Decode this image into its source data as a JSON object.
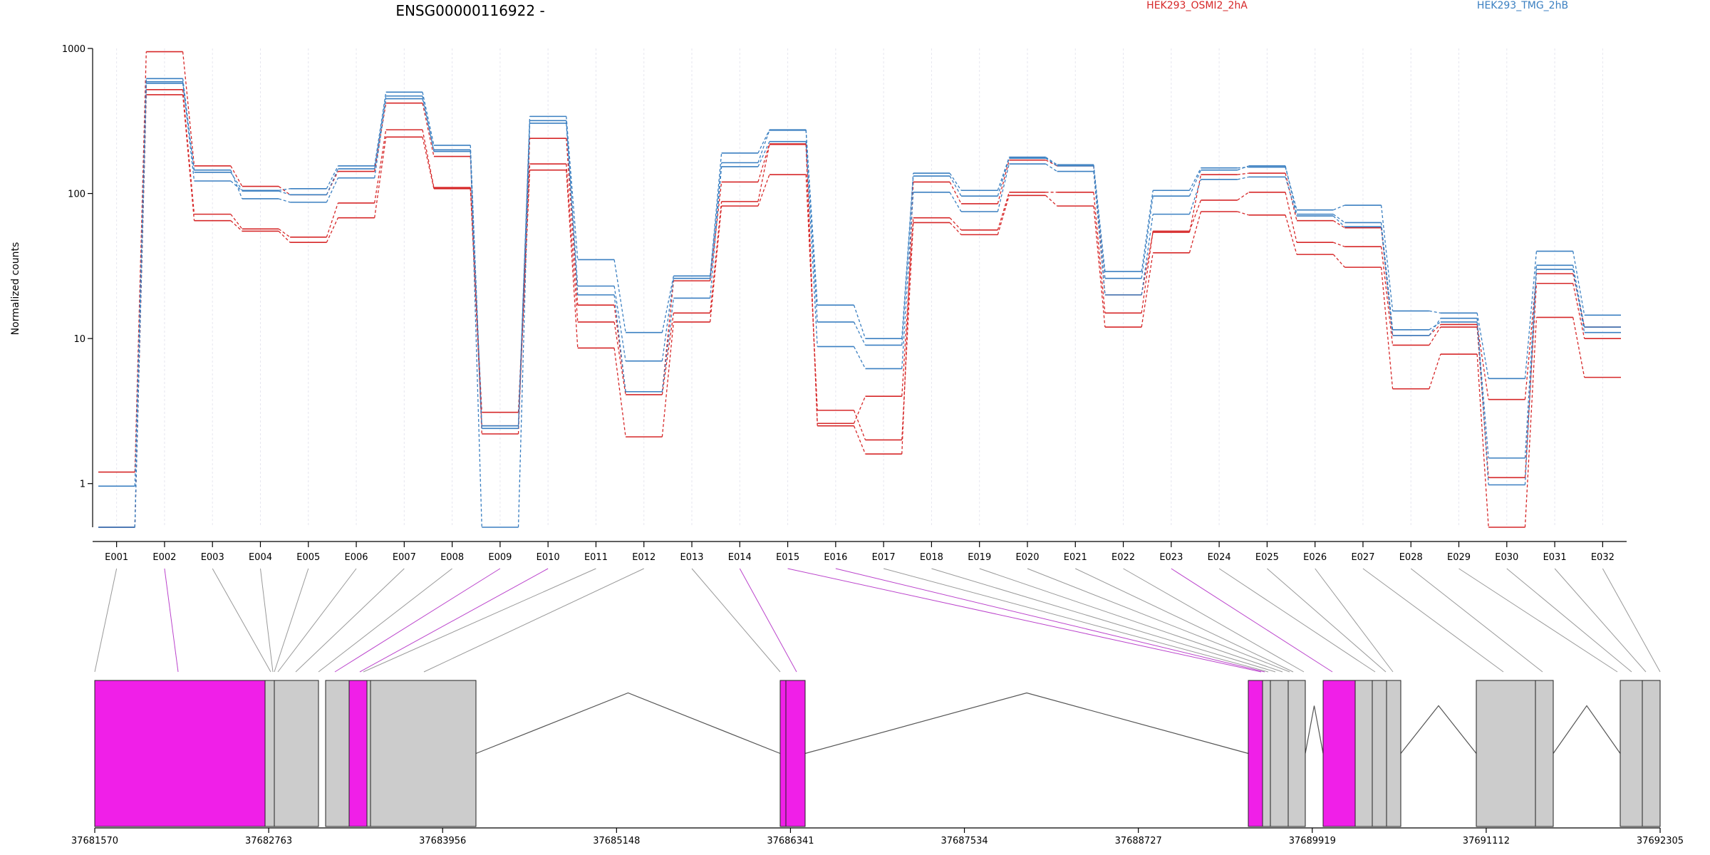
{
  "title": "ENSG00000116922 -",
  "legend": [
    {
      "label": "HEK293_OSMI2_2hA",
      "color": "#d62728"
    },
    {
      "label": "HEK293_TMG_2hB",
      "color": "#3a7fc1"
    }
  ],
  "colors": {
    "red": "#d62728",
    "blue": "#3a7fc1",
    "highlight": "#f01fe8",
    "exon_gray": "#cccccc",
    "connector_gray": "#999999",
    "connector_magenta": "#bb44cc",
    "grid": "#e6e6ef"
  },
  "chart_data": {
    "type": "line",
    "ylabel": "Normalized counts",
    "yscale": "log",
    "ylim": [
      0.5,
      1000
    ],
    "yticks": [
      "1000",
      "100",
      "10",
      "1"
    ],
    "categories": [
      "E001",
      "E002",
      "E003",
      "E004",
      "E005",
      "E006",
      "E007",
      "E008",
      "E009",
      "E010",
      "E011",
      "E012",
      "E013",
      "E014",
      "E015",
      "E016",
      "E017",
      "E018",
      "E019",
      "E020",
      "E021",
      "E022",
      "E023",
      "E024",
      "E025",
      "E026",
      "E027",
      "E028",
      "E029",
      "E030",
      "E031",
      "E032"
    ],
    "series": [
      {
        "group": "red",
        "values": [
          1.2,
          950,
          155,
          112,
          98,
          142,
          420,
          180,
          2.2,
          240,
          17,
          4.3,
          25,
          120,
          220,
          2.5,
          1.6,
          120,
          85,
          170,
          155,
          20,
          54,
          135,
          138,
          65,
          58,
          10.5,
          12.5,
          3.8,
          28,
          12
        ]
      },
      {
        "group": "red",
        "values": [
          0.5,
          520,
          72,
          57,
          50,
          86,
          275,
          110,
          3.1,
          160,
          13,
          4.1,
          15,
          88,
          218,
          2.6,
          4,
          68,
          56,
          102,
          102,
          15,
          55,
          90,
          102,
          46,
          43,
          9,
          12,
          1.1,
          24,
          10
        ]
      },
      {
        "group": "red",
        "values": [
          0.5,
          480,
          65,
          55,
          46,
          68,
          245,
          108,
          2.5,
          145,
          8.6,
          2.1,
          13,
          82,
          135,
          3.2,
          2,
          63,
          52,
          97,
          82,
          12,
          39,
          75,
          71,
          38,
          31,
          4.5,
          7.8,
          0.5,
          14,
          5.4
        ]
      },
      {
        "group": "blue",
        "values": [
          0.96,
          620,
          140,
          105,
          108,
          155,
          500,
          215,
          2.5,
          340,
          35,
          11,
          27,
          190,
          275,
          17,
          10,
          138,
          105,
          178,
          158,
          29,
          105,
          150,
          152,
          77,
          83,
          15.5,
          15,
          5.3,
          40,
          14.5
        ]
      },
      {
        "group": "blue",
        "values": [
          0.5,
          590,
          122,
          104,
          98,
          148,
          470,
          195,
          2.4,
          318,
          23,
          7,
          26,
          163,
          273,
          13,
          9,
          132,
          96,
          175,
          155,
          26,
          96,
          145,
          155,
          72,
          63,
          11.5,
          13,
          1.5,
          32,
          12
        ]
      },
      {
        "group": "blue",
        "values": [
          0.5,
          575,
          145,
          92,
          87,
          128,
          450,
          200,
          0.5,
          305,
          20,
          4.3,
          19,
          153,
          228,
          8.8,
          6.2,
          102,
          75,
          160,
          142,
          20,
          72,
          125,
          130,
          70,
          59,
          10.5,
          13.8,
          0.98,
          30,
          11
        ]
      }
    ]
  },
  "gene_model": {
    "ticks": [
      "37681570",
      "37682763",
      "37683956",
      "37685148",
      "37686341",
      "37687534",
      "37688727",
      "37689919",
      "37691112",
      "37692305"
    ]
  }
}
